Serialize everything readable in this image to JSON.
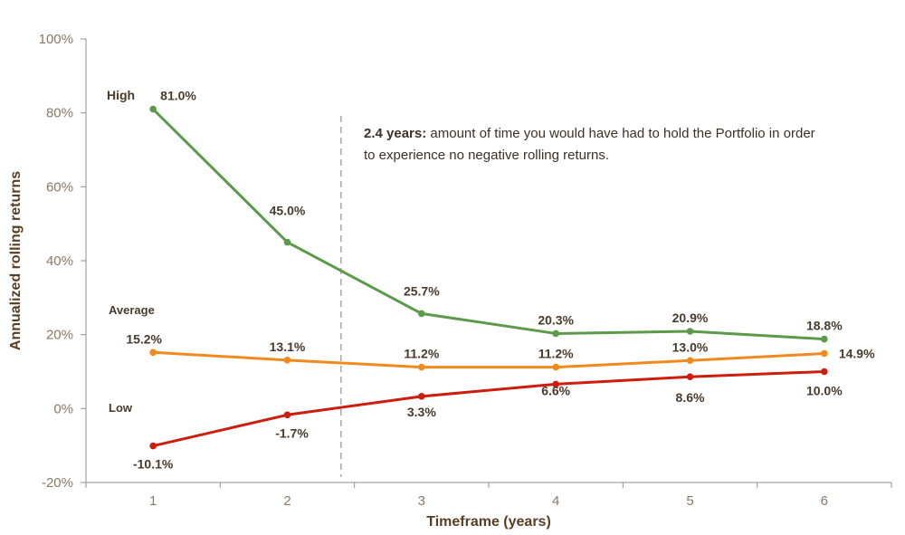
{
  "chart_data": {
    "type": "line",
    "title": "",
    "xlabel": "Timeframe (years)",
    "ylabel": "Annualized rolling returns",
    "x": [
      1,
      2,
      3,
      4,
      5,
      6
    ],
    "x_tick_labels": [
      "1",
      "2",
      "3",
      "4",
      "5",
      "6"
    ],
    "ylim": [
      -20,
      100
    ],
    "y_ticks": [
      -20,
      0,
      20,
      40,
      60,
      80,
      100
    ],
    "y_tick_labels": [
      "-20%",
      "0%",
      "20%",
      "40%",
      "60%",
      "80%",
      "100%"
    ],
    "grid": false,
    "series": [
      {
        "name": "High",
        "color": "#5a9a48",
        "values": [
          81.0,
          45.0,
          25.7,
          20.3,
          20.9,
          18.8
        ],
        "labels": [
          "81.0%",
          "45.0%",
          "25.7%",
          "20.3%",
          "20.9%",
          "18.8%"
        ]
      },
      {
        "name": "Average",
        "color": "#f08a1c",
        "values": [
          15.2,
          13.1,
          11.2,
          11.2,
          13.0,
          14.9
        ],
        "labels": [
          "15.2%",
          "13.1%",
          "11.2%",
          "11.2%",
          "13.0%",
          "14.9%"
        ]
      },
      {
        "name": "Low",
        "color": "#cc1d0e",
        "values": [
          -10.1,
          -1.7,
          3.3,
          6.6,
          8.6,
          10.0
        ],
        "labels": [
          "-10.1%",
          "-1.7%",
          "3.3%",
          "6.6%",
          "8.6%",
          "10.0%"
        ]
      }
    ],
    "reference_line": {
      "x": 2.4,
      "style": "dashed"
    },
    "annotation": {
      "bold": "2.4 years:",
      "line1": " amount of time you would have had to hold the Portfolio in order",
      "line2": "to experience no negative rolling returns."
    }
  }
}
